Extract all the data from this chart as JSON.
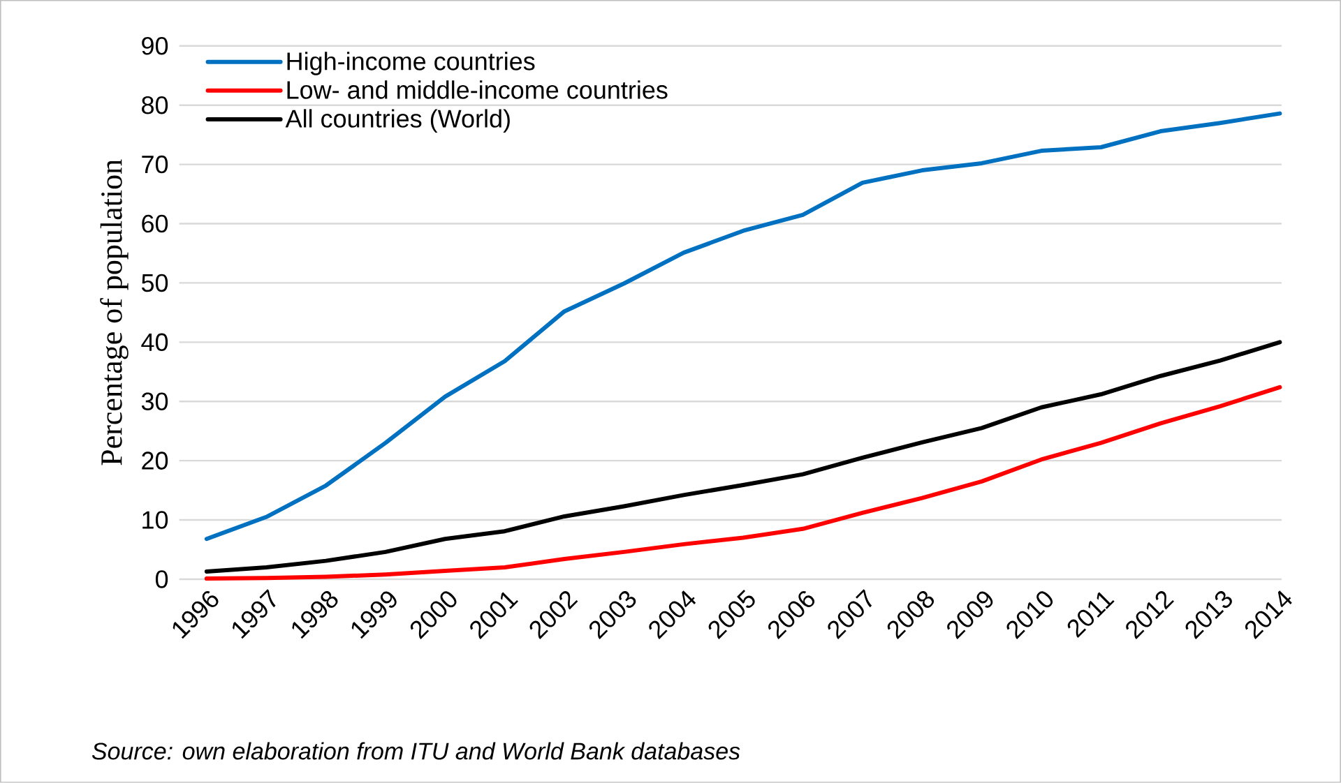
{
  "chart_data": {
    "type": "line",
    "ylabel": "Percentage of population",
    "categories": [
      "1996",
      "1997",
      "1998",
      "1999",
      "2000",
      "2001",
      "2002",
      "2003",
      "2004",
      "2005",
      "2006",
      "2007",
      "2008",
      "2009",
      "2010",
      "2011",
      "2012",
      "2013",
      "2014"
    ],
    "ylim": [
      0,
      90
    ],
    "yticks": [
      0,
      10,
      20,
      30,
      40,
      50,
      60,
      70,
      80,
      90
    ],
    "grid": "y",
    "legend": "top left",
    "line_style": "solid",
    "marker": "none",
    "series": [
      {
        "name": "High-income countries",
        "color": "#0070c0",
        "values": [
          6.8,
          10.5,
          15.8,
          23,
          30.8,
          36.8,
          45.2,
          49.9,
          55.1,
          58.8,
          61.5,
          66.9,
          69,
          70.2,
          72.3,
          72.9,
          75.6,
          77,
          78.6
        ]
      },
      {
        "name": "Low- and middle-income countries",
        "color": "#ff0000",
        "values": [
          0.1,
          0.2,
          0.4,
          0.8,
          1.4,
          2,
          3.4,
          4.6,
          5.9,
          7,
          8.5,
          11.2,
          13.7,
          16.5,
          20.2,
          23,
          26.3,
          29.2,
          32.4
        ]
      },
      {
        "name": "All countries (World)",
        "color": "#000000",
        "values": [
          1.3,
          2,
          3.1,
          4.6,
          6.8,
          8.1,
          10.6,
          12.3,
          14.2,
          15.9,
          17.7,
          20.5,
          23.1,
          25.5,
          29,
          31.2,
          34.3,
          36.9,
          40
        ]
      }
    ],
    "annotations": [
      "Source: own elaboration from ITU and World Bank databases"
    ]
  }
}
